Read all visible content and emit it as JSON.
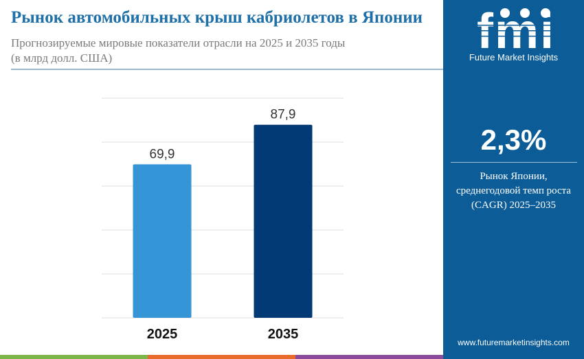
{
  "header": {
    "title": "Рынок автомобильных крыш кабриолетов в Японии",
    "subtitle": "Прогнозируемые мировые показатели отрасли на 2025 и 2035 годы",
    "unit": "(в млрд долл. США)"
  },
  "chart_data": {
    "type": "bar",
    "categories": [
      "2025",
      "2035"
    ],
    "values": [
      69.9,
      87.9
    ],
    "value_labels": [
      "69,9",
      "87,9"
    ],
    "colors": [
      "#3595d6",
      "#023a76"
    ],
    "ylim": [
      0,
      100
    ],
    "grid": true
  },
  "brand": {
    "logo_letters": "fmi",
    "name": "Future Market Insights",
    "website": "www.futuremarketinsights.com"
  },
  "stat": {
    "value": "2,3%",
    "desc_line1": "Рынок Японии,",
    "desc_line2": "среднегодовой темп роста",
    "desc_line3": "(CAGR) 2025–2035"
  },
  "colors": {
    "accent": "#0c5c97",
    "title": "#1f6fa8",
    "footer": [
      "#7ab648",
      "#e86b2b",
      "#8b4a9c"
    ]
  }
}
